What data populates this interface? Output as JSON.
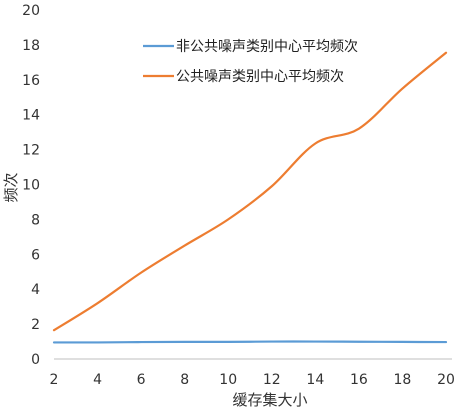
{
  "chart_data": {
    "type": "line",
    "title": "",
    "xlabel": "缓存集大小",
    "ylabel": "频次",
    "x": [
      2,
      4,
      6,
      8,
      10,
      12,
      14,
      16,
      18,
      20
    ],
    "xlim": [
      2,
      20
    ],
    "ylim": [
      0,
      20
    ],
    "xticks": [
      2,
      4,
      6,
      8,
      10,
      12,
      14,
      16,
      18,
      20
    ],
    "yticks": [
      0,
      2,
      4,
      6,
      8,
      10,
      12,
      14,
      16,
      18,
      20
    ],
    "grid": false,
    "legend_position": "top-center",
    "series": [
      {
        "name": "非公共噪声类别中心平均频次",
        "color": "#5B9BD5",
        "values": [
          0.95,
          0.95,
          0.97,
          0.98,
          0.98,
          1.0,
          1.0,
          0.99,
          0.98,
          0.97
        ]
      },
      {
        "name": "公共噪声类别中心平均频次",
        "color": "#ED7D31",
        "values": [
          1.65,
          3.2,
          4.95,
          6.5,
          8.0,
          9.9,
          12.35,
          13.2,
          15.5,
          17.55
        ]
      }
    ]
  }
}
